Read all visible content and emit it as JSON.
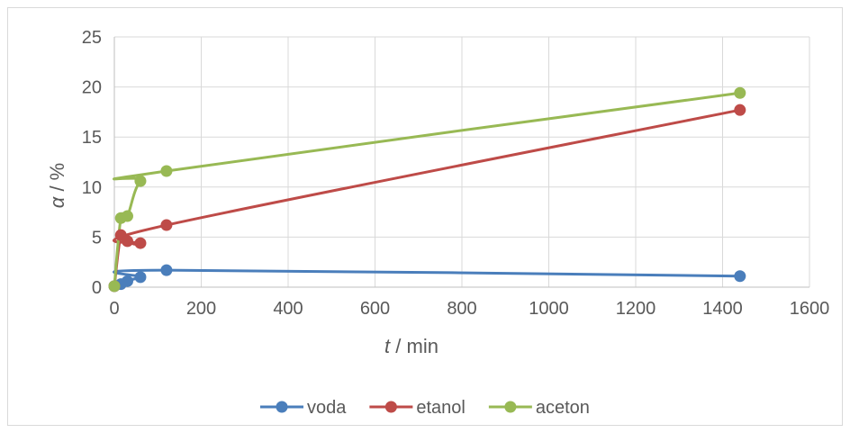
{
  "chart_data": {
    "type": "line",
    "title": "",
    "xlabel_italic": "t",
    "xlabel_rest": " / min",
    "ylabel_italic": "α",
    "ylabel_rest": " / %",
    "xlim": [
      0,
      1600
    ],
    "ylim": [
      0,
      25
    ],
    "x_ticks": [
      "0",
      "200",
      "400",
      "600",
      "800",
      "1000",
      "1200",
      "1400",
      "1600"
    ],
    "y_ticks": [
      "0",
      "5",
      "10",
      "15",
      "20",
      "25"
    ],
    "grid": true,
    "legend_position": "bottom",
    "series": [
      {
        "name": "voda",
        "color": "#4a7ebb",
        "x": [
          0,
          15,
          30,
          60,
          120,
          1440
        ],
        "y": [
          0.1,
          0.3,
          0.6,
          1.0,
          1.7,
          1.1
        ]
      },
      {
        "name": "etanol",
        "color": "#be4b48",
        "x": [
          0,
          15,
          30,
          60,
          120,
          1440
        ],
        "y": [
          0.1,
          5.2,
          4.6,
          4.4,
          6.2,
          17.7
        ]
      },
      {
        "name": "aceton",
        "color": "#98b954",
        "x": [
          0,
          15,
          30,
          60,
          120,
          1440
        ],
        "y": [
          0.1,
          6.9,
          7.1,
          10.6,
          11.6,
          19.4
        ]
      }
    ]
  }
}
